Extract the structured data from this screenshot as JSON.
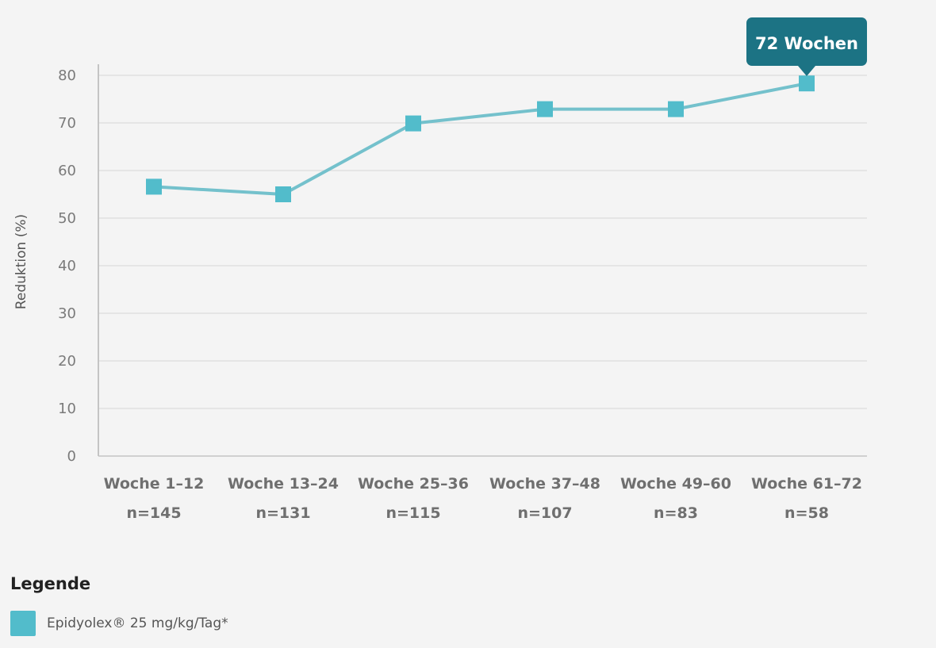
{
  "chart_data": {
    "type": "line",
    "ylabel": "Reduktion (%)",
    "xlabel": "",
    "ylim": [
      0,
      80
    ],
    "yticks": [
      0,
      10,
      20,
      30,
      40,
      50,
      60,
      70,
      80
    ],
    "grid": true,
    "categories": [
      "Woche 1–12",
      "Woche 13–24",
      "Woche 25–36",
      "Woche 37–48",
      "Woche 49–60",
      "Woche 61–72"
    ],
    "sublabels": [
      "n=145",
      "n=131",
      "n=115",
      "n=107",
      "n=83",
      "n=58"
    ],
    "series": [
      {
        "name": "Epidyolex® 25 mg/kg/Tag*",
        "values": [
          56.6,
          55.0,
          69.9,
          72.9,
          72.9,
          78.3
        ],
        "color": "#52bccb"
      }
    ],
    "annotation": {
      "text": "72 Wochen",
      "category_index": 5,
      "color": "#1c7384"
    },
    "legend_position": "bottom-left"
  },
  "legend": {
    "title": "Legende",
    "items": [
      {
        "label": "Epidyolex® 25 mg/kg/Tag*",
        "color": "#52bccb"
      }
    ]
  },
  "colors": {
    "line": "#74c1cc",
    "marker": "#52bccb",
    "grid": "#dcdcdc",
    "axis": "#c4c4c4",
    "callout": "#1c7384"
  }
}
